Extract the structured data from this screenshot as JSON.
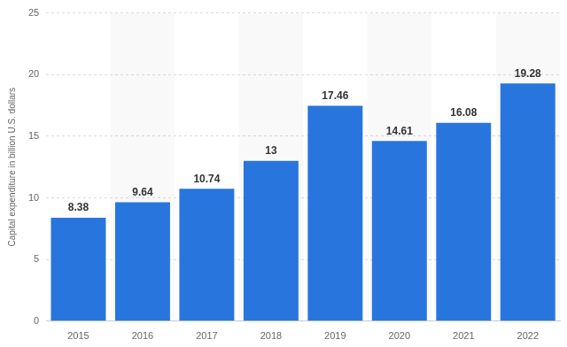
{
  "chart_data": {
    "type": "bar",
    "y_label": "Capital expenditure in billion U.S. dollars",
    "categories": [
      "2015",
      "2016",
      "2017",
      "2018",
      "2019",
      "2020",
      "2021",
      "2022"
    ],
    "values": [
      8.38,
      9.64,
      10.74,
      13,
      17.46,
      14.61,
      16.08,
      19.28
    ],
    "color": "#2876dd",
    "ylim": [
      0,
      25
    ],
    "yticks": [
      0,
      5,
      10,
      15,
      20,
      25
    ],
    "grid": true,
    "data_labels": true
  }
}
